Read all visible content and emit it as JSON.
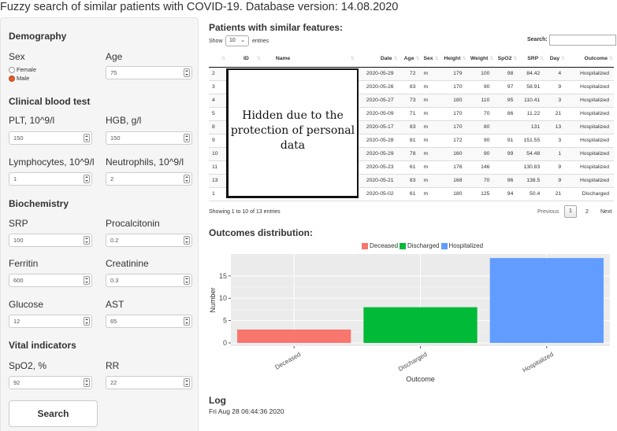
{
  "app": {
    "title": "Fuzzy search of similar patients with COVID-19. Database version: 14.08.2020"
  },
  "sidebar": {
    "demography": {
      "title": "Demography",
      "sex": {
        "label": "Sex",
        "options": [
          "Female",
          "Male"
        ],
        "selected": "Male"
      },
      "age": {
        "label": "Age",
        "value": "75"
      }
    },
    "blood": {
      "title": "Clinical blood test",
      "plt": {
        "label": "PLT, 10^9/l",
        "value": "150"
      },
      "hgb": {
        "label": "HGB, g/l",
        "value": "150"
      },
      "lymph": {
        "label": "Lymphocytes, 10^9/l",
        "value": "1"
      },
      "neutro": {
        "label": "Neutrophils, 10^9/l",
        "value": "2"
      }
    },
    "biochem": {
      "title": "Biochemistry",
      "srp": {
        "label": "SRP",
        "value": "100"
      },
      "procal": {
        "label": "Procalcitonin",
        "value": "0.2"
      },
      "ferritin": {
        "label": "Ferritin",
        "value": "600"
      },
      "creat": {
        "label": "Creatinine",
        "value": "0.3"
      },
      "glucose": {
        "label": "Glucose",
        "value": "12"
      },
      "ast": {
        "label": "AST",
        "value": "65"
      }
    },
    "vital": {
      "title": "Vital indicators",
      "spo2": {
        "label": "SpO2, %",
        "value": "92"
      },
      "rr": {
        "label": "RR",
        "value": "22"
      }
    },
    "search_label": "Search"
  },
  "patients": {
    "title": "Patients with similar features:",
    "show_label": "Show",
    "length_value": "10",
    "entries_label": "entries",
    "search_label": "Search:",
    "columns": [
      "",
      "ID",
      "Name",
      "Date",
      "Age",
      "Sex",
      "Height",
      "Weight",
      "SpO2",
      "SRP",
      "Day",
      "Outcome"
    ],
    "rows": [
      [
        "2",
        "",
        "",
        "2020-05-29",
        "72",
        "m",
        "179",
        "100",
        "98",
        "84.42",
        "4",
        "Hospitalized"
      ],
      [
        "3",
        "",
        "",
        "2020-05-26",
        "83",
        "m",
        "170",
        "90",
        "97",
        "58.91",
        "9",
        "Hospitalized"
      ],
      [
        "4",
        "",
        "",
        "2020-05-27",
        "73",
        "m",
        "180",
        "110",
        "95",
        "110.41",
        "3",
        "Hospitalized"
      ],
      [
        "5",
        "",
        "",
        "2020-05-09",
        "71",
        "m",
        "170",
        "70",
        "86",
        "11.22",
        "21",
        "Hospitalized"
      ],
      [
        "8",
        "",
        "",
        "2020-05-17",
        "83",
        "m",
        "170",
        "80",
        "",
        "131",
        "13",
        "Hospitalized"
      ],
      [
        "9",
        "",
        "",
        "2020-05-28",
        "81",
        "m",
        "172",
        "90",
        "91",
        "151.55",
        "3",
        "Hospitalized"
      ],
      [
        "10",
        "",
        "",
        "2020-05-29",
        "78",
        "m",
        "160",
        "90",
        "99",
        "54.48",
        "1",
        "Hospitalized"
      ],
      [
        "11",
        "",
        "",
        "2020-05-23",
        "61",
        "m",
        "176",
        "146",
        "",
        "130.83",
        "9",
        "Hospitalized"
      ],
      [
        "13",
        "",
        "",
        "2020-05-21",
        "83",
        "m",
        "168",
        "70",
        "96",
        "138.5",
        "9",
        "Hospitalized"
      ],
      [
        "1",
        "",
        "",
        "2020-05-02",
        "61",
        "m",
        "180",
        "125",
        "94",
        "50.4",
        "21",
        "Discharged"
      ]
    ],
    "privacy_note": "Hidden due to the protection of personal data",
    "info": "Showing 1 to 10 of 13 entries",
    "pager": {
      "previous": "Previous",
      "pages": [
        "1",
        "2"
      ],
      "current": "1",
      "next": "Next"
    }
  },
  "outcomes": {
    "title": "Outcomes distribution:",
    "colors": {
      "Deceased": "#f8766d",
      "Discharged": "#00ba38",
      "Hospitalized": "#619cff"
    }
  },
  "chart_data": {
    "type": "bar",
    "categories": [
      "Deceased",
      "Discharged",
      "Hospitalized"
    ],
    "values": [
      3,
      8,
      19
    ],
    "legend": [
      "Deceased",
      "Discharged",
      "Hospitalized"
    ],
    "xlabel": "Outcome",
    "ylabel": "Number",
    "yticks": [
      0,
      5,
      10,
      15
    ],
    "ylim": [
      -0.7,
      19.9
    ],
    "grid": true,
    "legend_position": "top"
  },
  "log": {
    "title": "Log",
    "text": "Fri Aug 28 06:44:36 2020"
  }
}
